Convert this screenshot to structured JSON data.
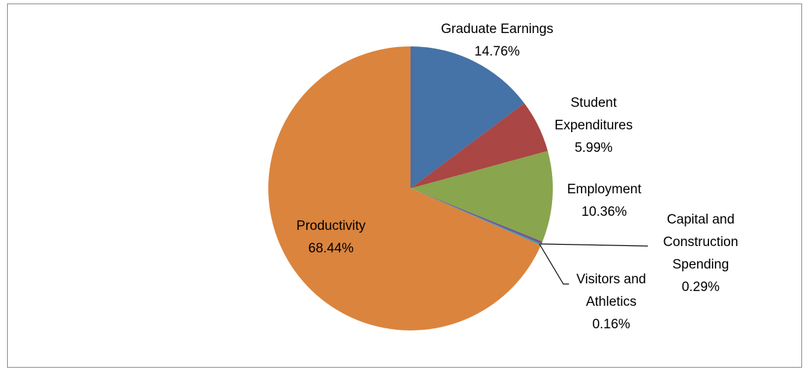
{
  "chart_data": {
    "type": "pie",
    "categories": [
      "Graduate Earnings",
      "Student Expenditures",
      "Employment",
      "Capital and Construction Spending",
      "Visitors and Athletics",
      "Productivity"
    ],
    "values": [
      14.76,
      5.99,
      10.36,
      0.29,
      0.16,
      68.44
    ],
    "value_labels": [
      "14.76%",
      "5.99%",
      "10.36%",
      "0.29%",
      "0.16%",
      "68.44%"
    ],
    "colors": [
      "#4572a7",
      "#aa4643",
      "#89a54e",
      "#71588f",
      "#4198af",
      "#db843d"
    ]
  }
}
